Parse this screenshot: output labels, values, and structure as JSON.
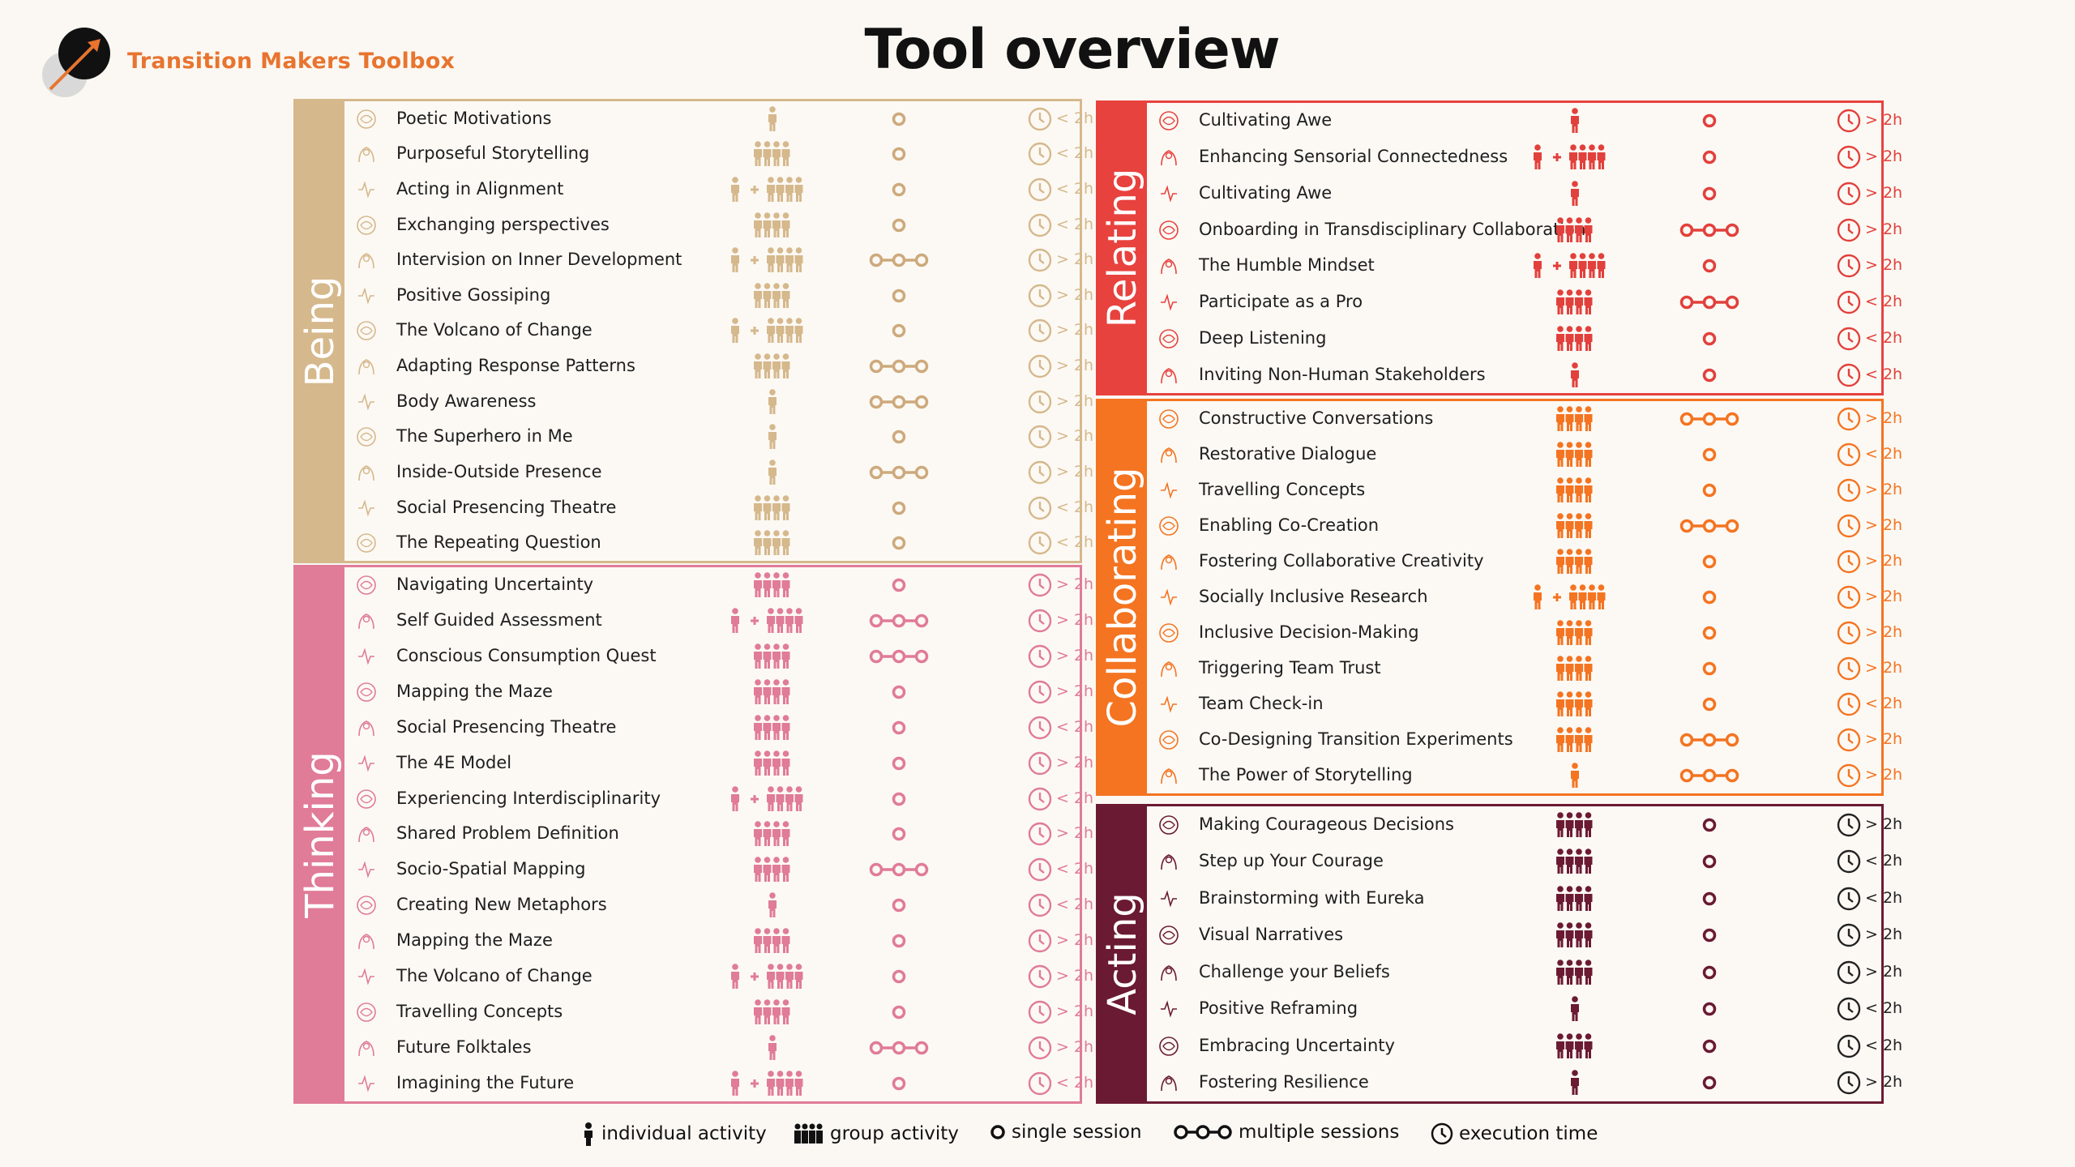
{
  "brand": "Transition Makers Toolbox",
  "title": "Tool overview",
  "legend": {
    "individual": "individual activity",
    "group": "group activity",
    "single": "single session",
    "multiple": "multiple sessions",
    "time": "execution time"
  },
  "sections": [
    {
      "name": "Being",
      "color": "#d5b88c",
      "people_color": "#d5b88c",
      "session_color": "#cda97c",
      "clock_color": "#d5b88c",
      "tools": [
        {
          "name": "Poetic Motivations",
          "p": "i",
          "s": "s",
          "t": "< 2h"
        },
        {
          "name": "Purposeful Storytelling",
          "p": "g",
          "s": "s",
          "t": "< 2h"
        },
        {
          "name": "Acting in Alignment",
          "p": "ig",
          "s": "s",
          "t": "< 2h"
        },
        {
          "name": "Exchanging perspectives",
          "p": "g",
          "s": "s",
          "t": "< 2h"
        },
        {
          "name": "Intervision on Inner Development",
          "p": "ig",
          "s": "m",
          "t": "> 2h"
        },
        {
          "name": "Positive Gossiping",
          "p": "g",
          "s": "s",
          "t": "> 2h"
        },
        {
          "name": "The Volcano of Change",
          "p": "ig",
          "s": "s",
          "t": "> 2h"
        },
        {
          "name": "Adapting Response Patterns",
          "p": "g",
          "s": "m",
          "t": "> 2h"
        },
        {
          "name": "Body Awareness",
          "p": "i",
          "s": "m",
          "t": "> 2h"
        },
        {
          "name": "The Superhero in Me",
          "p": "i",
          "s": "s",
          "t": "> 2h"
        },
        {
          "name": "Inside-Outside Presence",
          "p": "i",
          "s": "m",
          "t": "> 2h"
        },
        {
          "name": "Social Presencing Theatre",
          "p": "g",
          "s": "s",
          "t": "< 2h"
        },
        {
          "name": "The Repeating Question",
          "p": "g",
          "s": "s",
          "t": "< 2h"
        }
      ]
    },
    {
      "name": "Thinking",
      "color": "#e07b98",
      "people_color": "#e07b98",
      "session_color": "#e07b98",
      "clock_color": "#e07b98",
      "tools": [
        {
          "name": "Navigating Uncertainty",
          "p": "g",
          "s": "s",
          "t": "> 2h"
        },
        {
          "name": "Self Guided Assessment",
          "p": "ig",
          "s": "m",
          "t": "> 2h"
        },
        {
          "name": "Conscious Consumption Quest",
          "p": "g",
          "s": "m",
          "t": "> 2h"
        },
        {
          "name": "Mapping the Maze",
          "p": "g",
          "s": "s",
          "t": "> 2h"
        },
        {
          "name": "Social Presencing Theatre",
          "p": "g",
          "s": "s",
          "t": "< 2h"
        },
        {
          "name": "The 4E Model",
          "p": "g",
          "s": "s",
          "t": "> 2h"
        },
        {
          "name": "Experiencing Interdisciplinarity",
          "p": "ig",
          "s": "s",
          "t": "< 2h"
        },
        {
          "name": "Shared Problem Definition",
          "p": "g",
          "s": "s",
          "t": "> 2h"
        },
        {
          "name": "Socio-Spatial Mapping",
          "p": "g",
          "s": "m",
          "t": "< 2h"
        },
        {
          "name": "Creating New Metaphors",
          "p": "i",
          "s": "s",
          "t": "< 2h"
        },
        {
          "name": "Mapping the Maze",
          "p": "g",
          "s": "s",
          "t": "> 2h"
        },
        {
          "name": "The Volcano of Change",
          "p": "ig",
          "s": "s",
          "t": "> 2h"
        },
        {
          "name": "Travelling Concepts",
          "p": "g",
          "s": "s",
          "t": "> 2h"
        },
        {
          "name": "Future Folktales",
          "p": "i",
          "s": "m",
          "t": "> 2h"
        },
        {
          "name": "Imagining the Future",
          "p": "ig",
          "s": "s",
          "t": "< 2h"
        }
      ]
    },
    {
      "name": "Relating",
      "color": "#e8423e",
      "people_color": "#e2403c",
      "session_color": "#e2403c",
      "clock_color": "#e2403c",
      "tools": [
        {
          "name": "Cultivating Awe",
          "p": "i",
          "s": "s",
          "t": "> 2h"
        },
        {
          "name": "Enhancing Sensorial Connectedness",
          "p": "ig",
          "s": "s",
          "t": "> 2h"
        },
        {
          "name": "Cultivating Awe",
          "p": "i",
          "s": "s",
          "t": "> 2h"
        },
        {
          "name": "Onboarding in Transdisciplinary Collaboration",
          "p": "g",
          "s": "m",
          "t": "> 2h"
        },
        {
          "name": "The Humble Mindset",
          "p": "ig",
          "s": "s",
          "t": "> 2h"
        },
        {
          "name": "Participate as a Pro",
          "p": "g",
          "s": "m",
          "t": "< 2h"
        },
        {
          "name": "Deep Listening",
          "p": "g",
          "s": "s",
          "t": "< 2h"
        },
        {
          "name": "Inviting Non-Human Stakeholders",
          "p": "i",
          "s": "s",
          "t": "< 2h"
        }
      ]
    },
    {
      "name": "Collaborating",
      "color": "#f47421",
      "people_color": "#f47421",
      "session_color": "#f47421",
      "clock_color": "#f47421",
      "tools": [
        {
          "name": "Constructive Conversations",
          "p": "g",
          "s": "m",
          "t": "> 2h"
        },
        {
          "name": "Restorative Dialogue",
          "p": "g",
          "s": "s",
          "t": "< 2h"
        },
        {
          "name": "Travelling Concepts",
          "p": "g",
          "s": "s",
          "t": "> 2h"
        },
        {
          "name": "Enabling Co-Creation",
          "p": "g",
          "s": "m",
          "t": "> 2h"
        },
        {
          "name": "Fostering Collaborative Creativity",
          "p": "g",
          "s": "s",
          "t": "> 2h"
        },
        {
          "name": "Socially Inclusive Research",
          "p": "ig",
          "s": "s",
          "t": "> 2h"
        },
        {
          "name": "Inclusive Decision-Making",
          "p": "g",
          "s": "s",
          "t": "> 2h"
        },
        {
          "name": "Triggering Team Trust",
          "p": "g",
          "s": "s",
          "t": "> 2h"
        },
        {
          "name": "Team Check-in",
          "p": "g",
          "s": "s",
          "t": "< 2h"
        },
        {
          "name": "Co-Designing Transition Experiments",
          "p": "g",
          "s": "m",
          "t": "> 2h"
        },
        {
          "name": "The Power of Storytelling",
          "p": "i",
          "s": "m",
          "t": "> 2h"
        }
      ]
    },
    {
      "name": "Acting",
      "color": "#6b1a33",
      "people_color": "#6b1a33",
      "session_color": "#6b1a33",
      "clock_color": "#222222",
      "tools": [
        {
          "name": "Making Courageous Decisions",
          "p": "g",
          "s": "s",
          "t": "> 2h"
        },
        {
          "name": "Step up Your Courage",
          "p": "g",
          "s": "s",
          "t": "< 2h"
        },
        {
          "name": "Brainstorming with Eureka",
          "p": "g",
          "s": "s",
          "t": "< 2h"
        },
        {
          "name": "Visual Narratives",
          "p": "g",
          "s": "s",
          "t": "> 2h"
        },
        {
          "name": "Challenge your Beliefs",
          "p": "g",
          "s": "s",
          "t": "> 2h"
        },
        {
          "name": "Positive Reframing",
          "p": "i",
          "s": "s",
          "t": "< 2h"
        },
        {
          "name": "Embracing Uncertainty",
          "p": "g",
          "s": "s",
          "t": "< 2h"
        },
        {
          "name": "Fostering Resilience",
          "p": "i",
          "s": "s",
          "t": "> 2h"
        }
      ]
    }
  ]
}
